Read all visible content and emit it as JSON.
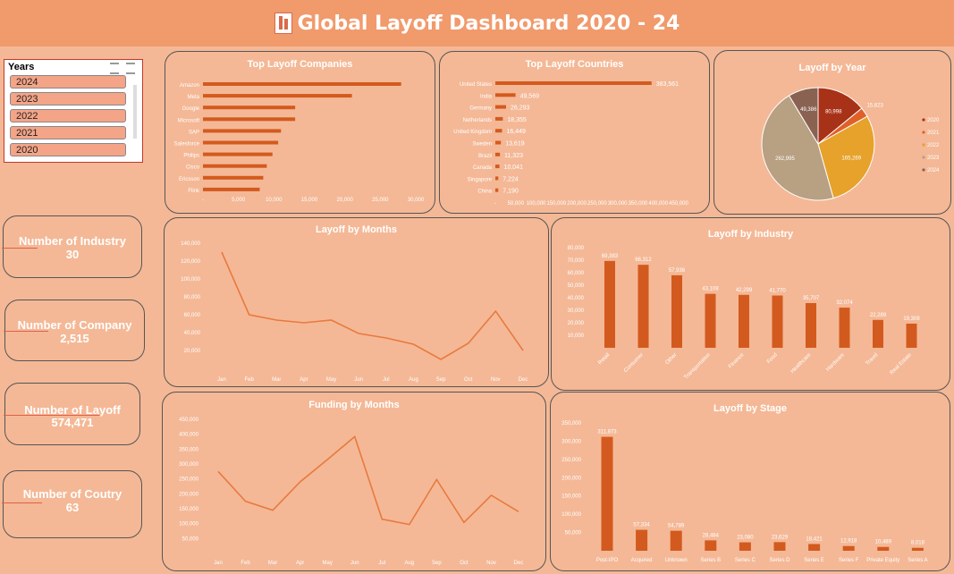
{
  "header": {
    "title": "Global Layoff Dashboard 2020 - 24"
  },
  "slicer": {
    "title": "Years",
    "items": [
      "2024",
      "2023",
      "2022",
      "2021",
      "2020"
    ]
  },
  "kpis": [
    {
      "label": "Number of Industry",
      "value": "30"
    },
    {
      "label": "Number of Company",
      "value": "2,515"
    },
    {
      "label": "Number of Layoff",
      "value": "574,471"
    },
    {
      "label": "Number of Coutry",
      "value": "63"
    }
  ],
  "colors": {
    "bar": "#d35a1e",
    "line": "#e87a3e",
    "pie": [
      "#a83218",
      "#e0602a",
      "#e6a22a",
      "#b8a082",
      "#8a6252"
    ]
  },
  "chart_data": [
    {
      "id": "companies",
      "type": "bar",
      "orientation": "horizontal",
      "title": "Top Layoff Companies",
      "categories": [
        "Amazon",
        "Meta",
        "Google",
        "Microsoft",
        "SAP",
        "Salesforce",
        "Philips",
        "Cisco",
        "Ericsson",
        "Flink"
      ],
      "values": [
        27940,
        21000,
        13000,
        13000,
        11000,
        10600,
        9800,
        9000,
        8500,
        8000
      ],
      "xticks": [
        "-",
        "5,000",
        "10,000",
        "15,000",
        "20,000",
        "25,000",
        "30,000"
      ],
      "xlim": [
        0,
        30000
      ]
    },
    {
      "id": "countries",
      "type": "bar",
      "orientation": "horizontal",
      "title": "Top Layoff Countries",
      "categories": [
        "United States",
        "India",
        "Germany",
        "Netherlands",
        "United Kingdom",
        "Sweden",
        "Brazil",
        "Canada",
        "Singapore",
        "China"
      ],
      "values": [
        383561,
        49569,
        26293,
        18355,
        16449,
        13619,
        11323,
        10041,
        7224,
        7190
      ],
      "labels": [
        "383,561",
        "49,569",
        "26,293",
        "18,355",
        "16,449",
        "13,619",
        "11,323",
        "10,041",
        "7,224",
        "7,190"
      ],
      "xticks": [
        "-",
        "50,000",
        "100,000",
        "150,000",
        "200,000",
        "250,000",
        "300,000",
        "350,000",
        "400,000",
        "450,000"
      ],
      "xlim": [
        0,
        450000
      ]
    },
    {
      "id": "year",
      "type": "pie",
      "title": "Layoff by Year",
      "categories": [
        "2020",
        "2021",
        "2022",
        "2023",
        "2024"
      ],
      "values": [
        80998,
        15823,
        165269,
        262995,
        49386
      ],
      "labels": [
        "80,998",
        "15,823",
        "165,269",
        "262,995",
        "49,386"
      ],
      "legend": "right"
    },
    {
      "id": "months",
      "type": "line",
      "title": "Layoff by Months",
      "x": [
        "Jan",
        "Feb",
        "Mar",
        "Apr",
        "May",
        "Jun",
        "Jul",
        "Aug",
        "Sep",
        "Oct",
        "Nov",
        "Dec"
      ],
      "values": [
        130000,
        60000,
        54000,
        51000,
        54000,
        39000,
        34000,
        27000,
        10000,
        28000,
        64000,
        20000
      ],
      "yticks": [
        "20,000",
        "40,000",
        "60,000",
        "80,000",
        "100,000",
        "120,000",
        "140,000"
      ],
      "ylim": [
        0,
        140000
      ]
    },
    {
      "id": "industry",
      "type": "bar",
      "title": "Layoff by Industry",
      "categories": [
        "Retail",
        "Consumer",
        "Other",
        "Transportation",
        "Finance",
        "Food",
        "Healthcare",
        "Hardware",
        "Travel",
        "Real Estate"
      ],
      "values": [
        69383,
        66312,
        57936,
        43108,
        42299,
        41770,
        35707,
        32074,
        22289,
        19308
      ],
      "labels": [
        "69,383",
        "66,312",
        "57,936",
        "43,108",
        "42,299",
        "41,770",
        "35,707",
        "32,074",
        "22,289",
        "19,308"
      ],
      "yticks": [
        "10,000",
        "20,000",
        "30,000",
        "40,000",
        "50,000",
        "60,000",
        "70,000",
        "80,000"
      ],
      "ylim": [
        0,
        80000
      ]
    },
    {
      "id": "funding",
      "type": "line",
      "title": "Funding by Months",
      "x": [
        "Jan",
        "Feb",
        "Mar",
        "Apr",
        "May",
        "Jun",
        "Jul",
        "Aug",
        "Sep",
        "Oct",
        "Nov",
        "Dec"
      ],
      "values": [
        275000,
        175000,
        145000,
        240000,
        315000,
        392000,
        115000,
        97000,
        248000,
        104000,
        195000,
        140000
      ],
      "yticks": [
        "50,000",
        "100,000",
        "150,000",
        "200,000",
        "250,000",
        "300,000",
        "350,000",
        "400,000",
        "450,000"
      ],
      "ylim": [
        0,
        450000
      ]
    },
    {
      "id": "stage",
      "type": "bar",
      "title": "Layoff by Stage",
      "categories": [
        "Post-IPO",
        "Acquired",
        "Unknown",
        "Series B",
        "Series C",
        "Series D",
        "Series E",
        "Series F",
        "Private Equity",
        "Series A"
      ],
      "values": [
        311873,
        57334,
        54789,
        28484,
        23080,
        23629,
        18421,
        12918,
        10489,
        8018
      ],
      "labels": [
        "311,873",
        "57,334",
        "54,789",
        "28,484",
        "23,080",
        "23,629",
        "18,421",
        "12,918",
        "10,489",
        "8,018"
      ],
      "yticks": [
        "50,000",
        "100,000",
        "150,000",
        "200,000",
        "250,000",
        "300,000",
        "350,000"
      ],
      "ylim": [
        0,
        350000
      ]
    }
  ]
}
